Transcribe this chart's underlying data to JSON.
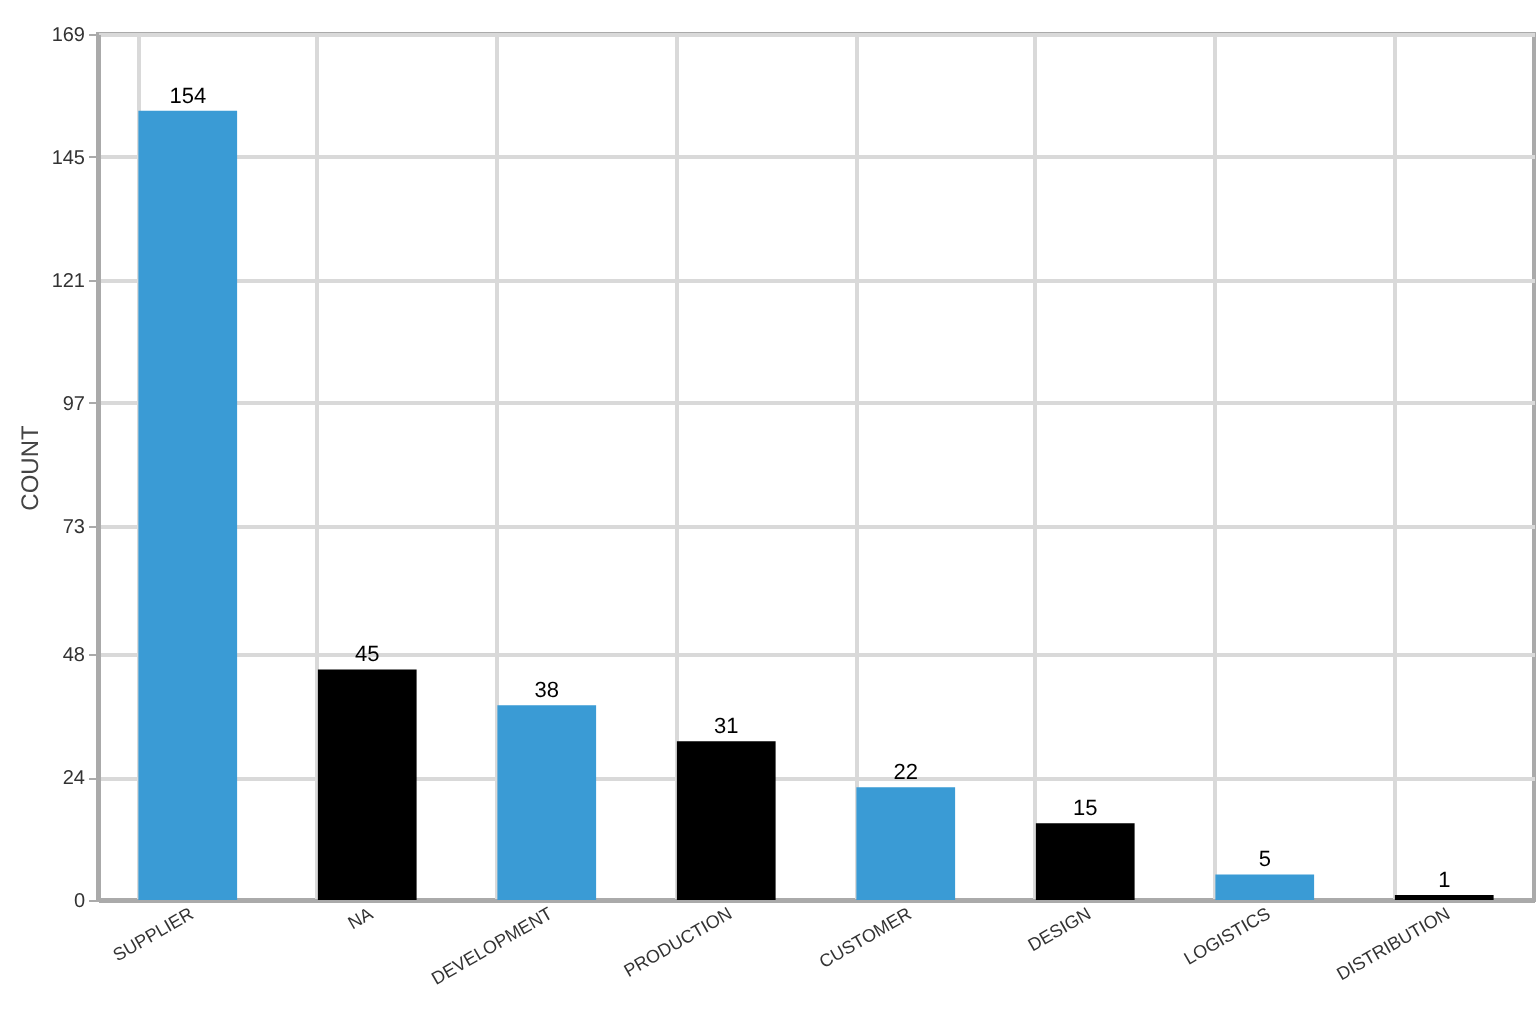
{
  "chart_data": {
    "type": "bar",
    "ylabel": "COUNT",
    "categories": [
      "SUPPLIER",
      "NA",
      "DEVELOPMENT",
      "PRODUCTION",
      "CUSTOMER",
      "DESIGN",
      "LOGISTICS",
      "DISTRIBUTION"
    ],
    "values": [
      154,
      45,
      38,
      31,
      22,
      15,
      5,
      1
    ],
    "colors": [
      "#3a9bd5",
      "#000000",
      "#3a9bd5",
      "#000000",
      "#3a9bd5",
      "#000000",
      "#3a9bd5",
      "#000000"
    ],
    "ylim": [
      0,
      169
    ],
    "yticks": [
      0,
      24,
      48,
      73,
      97,
      121,
      145,
      169
    ],
    "grid": true,
    "data_labels": true
  }
}
